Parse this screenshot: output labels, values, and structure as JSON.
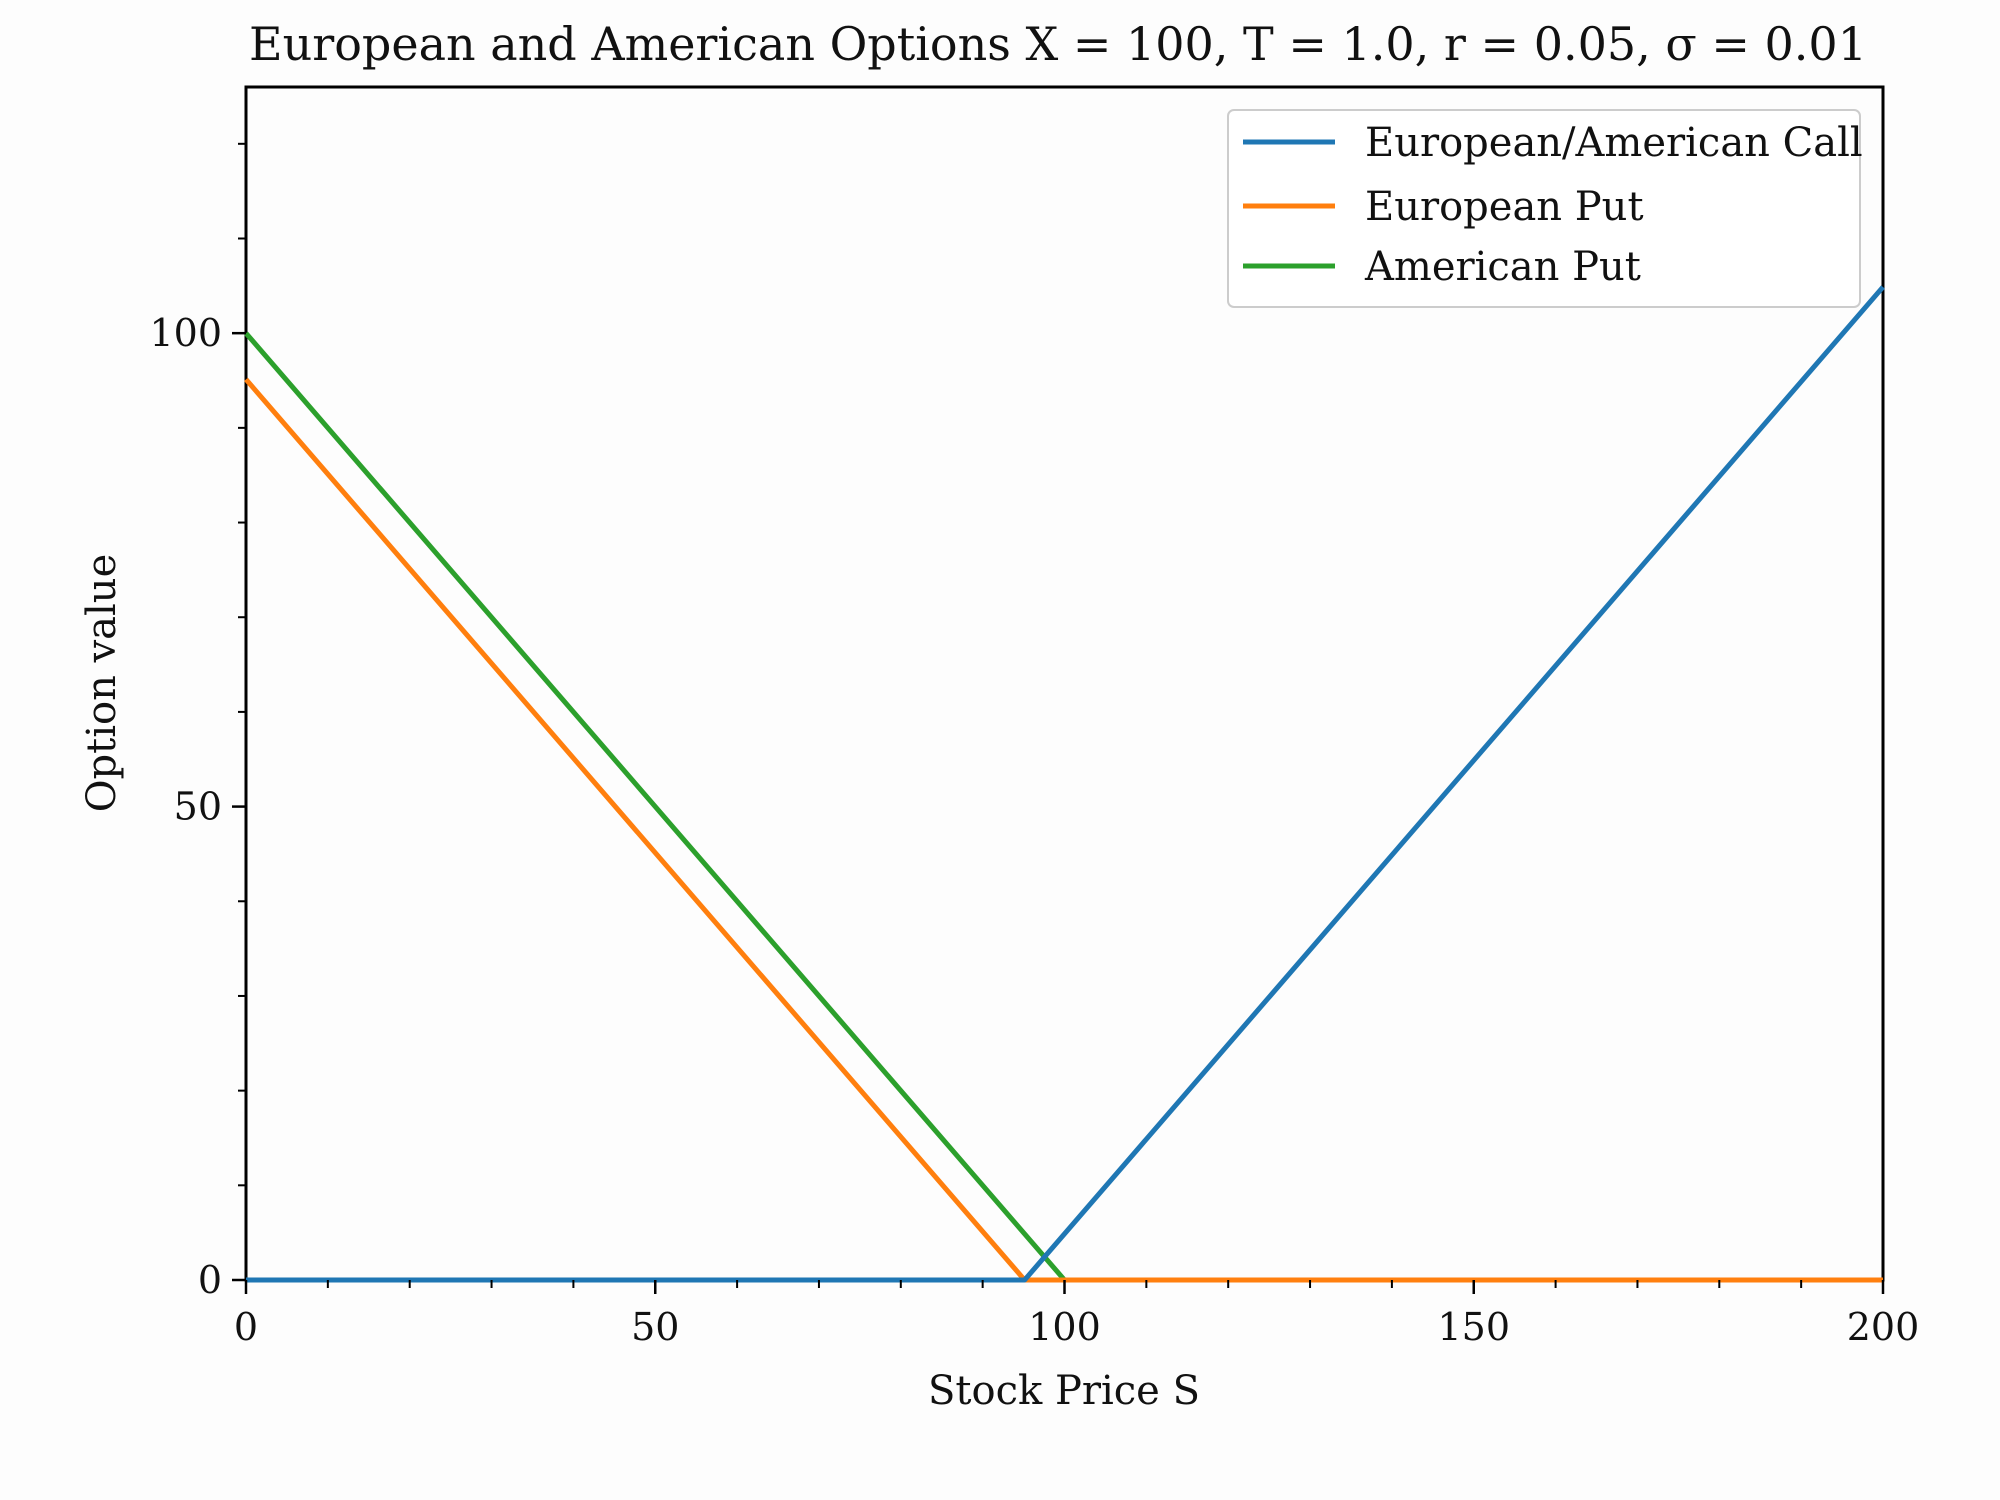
{
  "chart_data": {
    "type": "line",
    "title": "European and American Options  X = 100, T = 1.0, r = 0.05, σ = 0.01",
    "xlabel": "Stock Price S",
    "ylabel": "Option value",
    "xlim": [
      0,
      200
    ],
    "ylim": [
      0,
      126
    ],
    "xticks": [
      "0",
      "50",
      "100",
      "150",
      "200"
    ],
    "yticks": [
      "0",
      "50",
      "100"
    ],
    "grid": false,
    "legend_position": "top-right",
    "series": [
      {
        "name": "European/American Call",
        "color": "#1f77b4",
        "x": [
          0,
          95.12,
          200
        ],
        "y": [
          0,
          0,
          104.88
        ]
      },
      {
        "name": "European Put",
        "color": "#ff7f0e",
        "x": [
          0,
          95.12,
          200
        ],
        "y": [
          95.12,
          0,
          0
        ]
      },
      {
        "name": "American Put",
        "color": "#2ca02c",
        "x": [
          0,
          100,
          200
        ],
        "y": [
          100,
          0,
          0
        ]
      }
    ]
  }
}
